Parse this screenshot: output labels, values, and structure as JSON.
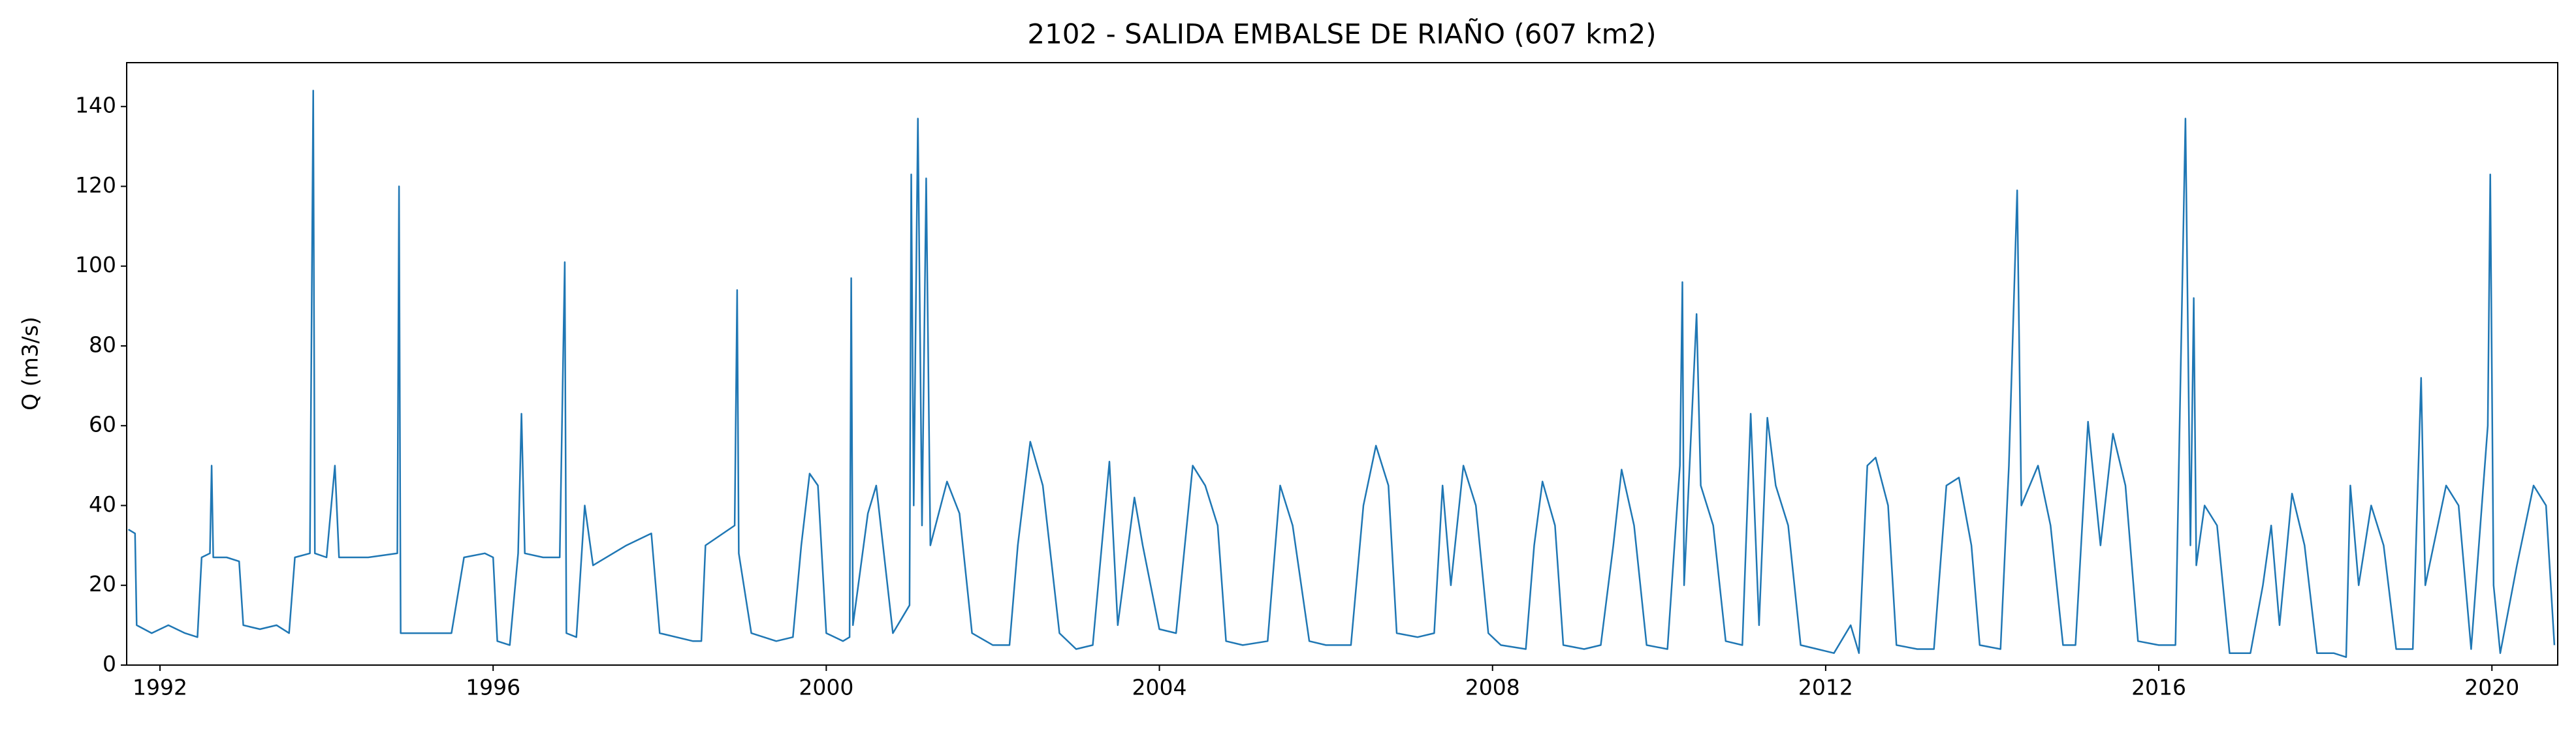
{
  "chart_data": {
    "type": "line",
    "title": "2102 - SALIDA EMBALSE DE RIAÑO (607 km2)",
    "y_label": "Q (m3/s)",
    "x": [
      1991.62,
      1991.7,
      1991.72,
      1991.9,
      1992.1,
      1992.3,
      1992.45,
      1992.5,
      1992.6,
      1992.62,
      1992.64,
      1992.8,
      1992.95,
      1993.0,
      1993.2,
      1993.4,
      1993.55,
      1993.62,
      1993.8,
      1993.84,
      1993.86,
      1994.0,
      1994.1,
      1994.15,
      1994.5,
      1994.85,
      1994.87,
      1994.89,
      1995.2,
      1995.5,
      1995.65,
      1995.9,
      1996.0,
      1996.05,
      1996.2,
      1996.3,
      1996.34,
      1996.38,
      1996.6,
      1996.8,
      1996.86,
      1996.88,
      1997.0,
      1997.1,
      1997.2,
      1997.6,
      1997.9,
      1998.0,
      1998.4,
      1998.5,
      1998.55,
      1998.9,
      1998.93,
      1998.95,
      1999.1,
      1999.4,
      1999.6,
      1999.7,
      1999.8,
      1999.9,
      2000.0,
      2000.2,
      2000.28,
      2000.3,
      2000.32,
      2000.5,
      2000.6,
      2000.8,
      2001.0,
      2001.02,
      2001.05,
      2001.1,
      2001.15,
      2001.2,
      2001.25,
      2001.45,
      2001.6,
      2001.75,
      2002.0,
      2002.2,
      2002.3,
      2002.45,
      2002.6,
      2002.8,
      2003.0,
      2003.2,
      2003.4,
      2003.5,
      2003.7,
      2003.8,
      2004.0,
      2004.2,
      2004.4,
      2004.55,
      2004.7,
      2004.8,
      2005.0,
      2005.3,
      2005.45,
      2005.6,
      2005.8,
      2006.0,
      2006.3,
      2006.45,
      2006.6,
      2006.75,
      2006.85,
      2007.1,
      2007.3,
      2007.4,
      2007.5,
      2007.65,
      2007.8,
      2007.95,
      2008.1,
      2008.4,
      2008.5,
      2008.6,
      2008.75,
      2008.85,
      2009.1,
      2009.3,
      2009.45,
      2009.55,
      2009.7,
      2009.85,
      2010.1,
      2010.25,
      2010.28,
      2010.3,
      2010.45,
      2010.5,
      2010.65,
      2010.8,
      2011.0,
      2011.1,
      2011.2,
      2011.3,
      2011.4,
      2011.55,
      2011.7,
      2011.9,
      2012.1,
      2012.3,
      2012.4,
      2012.5,
      2012.6,
      2012.75,
      2012.85,
      2013.1,
      2013.3,
      2013.45,
      2013.6,
      2013.75,
      2013.85,
      2014.1,
      2014.2,
      2014.3,
      2014.35,
      2014.55,
      2014.7,
      2014.85,
      2015.0,
      2015.15,
      2015.3,
      2015.45,
      2015.6,
      2015.75,
      2016.0,
      2016.2,
      2016.32,
      2016.38,
      2016.42,
      2016.45,
      2016.55,
      2016.7,
      2016.85,
      2017.1,
      2017.25,
      2017.35,
      2017.45,
      2017.6,
      2017.75,
      2017.9,
      2018.1,
      2018.25,
      2018.3,
      2018.4,
      2018.55,
      2018.7,
      2018.85,
      2019.05,
      2019.15,
      2019.2,
      2019.45,
      2019.6,
      2019.75,
      2019.95,
      2019.98,
      2020.02,
      2020.1,
      2020.3,
      2020.5,
      2020.65,
      2020.75
    ],
    "series": [
      {
        "color": "#1f77b4",
        "values": [
          34,
          33,
          10,
          8,
          10,
          8,
          7,
          27,
          28,
          50,
          27,
          27,
          26,
          10,
          9,
          10,
          8,
          27,
          28,
          144,
          28,
          27,
          50,
          27,
          27,
          28,
          120,
          8,
          8,
          8,
          27,
          28,
          27,
          6,
          5,
          28,
          63,
          28,
          27,
          27,
          101,
          8,
          7,
          40,
          25,
          30,
          33,
          8,
          6,
          6,
          30,
          35,
          94,
          28,
          8,
          6,
          7,
          30,
          48,
          45,
          8,
          6,
          7,
          97,
          10,
          38,
          45,
          8,
          15,
          123,
          40,
          137,
          35,
          122,
          30,
          46,
          38,
          8,
          5,
          5,
          30,
          56,
          45,
          8,
          4,
          5,
          51,
          10,
          42,
          30,
          9,
          8,
          50,
          45,
          35,
          6,
          5,
          6,
          45,
          35,
          6,
          5,
          5,
          40,
          55,
          45,
          8,
          7,
          8,
          45,
          20,
          50,
          40,
          8,
          5,
          4,
          30,
          46,
          35,
          5,
          4,
          5,
          30,
          49,
          35,
          5,
          4,
          50,
          96,
          20,
          88,
          45,
          35,
          6,
          5,
          63,
          10,
          62,
          45,
          35,
          5,
          4,
          3,
          10,
          3,
          50,
          52,
          40,
          5,
          4,
          4,
          45,
          47,
          30,
          5,
          4,
          50,
          119,
          40,
          50,
          35,
          5,
          5,
          61,
          30,
          58,
          45,
          6,
          5,
          5,
          137,
          30,
          92,
          25,
          40,
          35,
          3,
          3,
          20,
          35,
          10,
          43,
          30,
          3,
          3,
          2,
          45,
          20,
          40,
          30,
          4,
          4,
          72,
          20,
          45,
          40,
          4,
          60,
          123,
          20,
          3,
          25,
          45,
          40,
          5
        ]
      }
    ],
    "xlim": [
      1991.6,
      2020.79
    ],
    "xticks": [
      1992,
      1996,
      2000,
      2004,
      2008,
      2012,
      2016,
      2020
    ],
    "ylim": [
      0,
      151
    ],
    "yticks": [
      0,
      20,
      40,
      60,
      80,
      100,
      120,
      140
    ]
  }
}
